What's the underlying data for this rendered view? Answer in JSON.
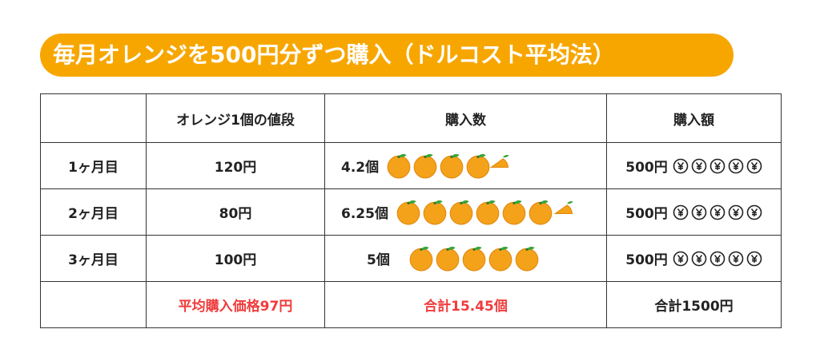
{
  "header": {
    "title": "毎月オレンジを500円分ずつ購入（ドルコスト平均法）"
  },
  "table": {
    "columns": [
      "オレンジ1個の値段",
      "購入数",
      "購入額"
    ],
    "rows": [
      [
        "1ヶ月目",
        "120円",
        "4.2個",
        "500円"
      ],
      [
        "2ヶ月目",
        "80円",
        "6.25個",
        "500円"
      ],
      [
        "3ヶ月目",
        "100円",
        "5個",
        "500円"
      ]
    ],
    "footer": [
      "平均購入価格97円",
      "合計15.45個",
      "合計1500円"
    ]
  }
}
